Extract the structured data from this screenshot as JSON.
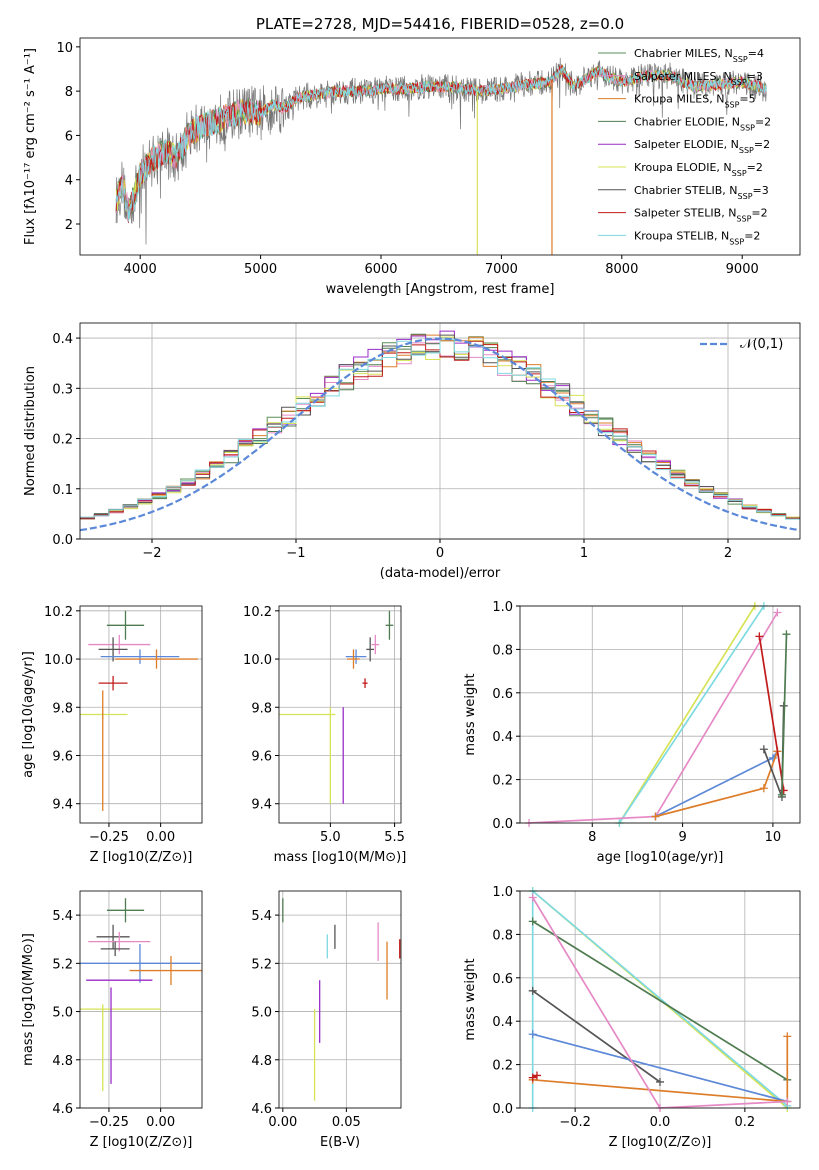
{
  "colors": {
    "Chabrier MILES": "#5b8f56",
    "Salpeter MILES": "#e68ac6",
    "Kroupa MILES": "#dd7d2a",
    "Chabrier ELODIE": "#4f7b50",
    "Salpeter ELODIE": "#9a2cc9",
    "Kroupa ELODIE": "#d7e356",
    "Chabrier STELIB": "#555555",
    "Salpeter STELIB": "#c11b1b",
    "Kroupa STELIB": "#7fd9e1",
    "blue": "#5b88d8"
  },
  "chart_data": [
    {
      "panel": "spectrum",
      "type": "line",
      "title": "PLATE=2728, MJD=54416, FIBERID=0528, z=0.0",
      "xlabel": "wavelength [Angstrom, rest frame]",
      "ylabel": "Flux [fλ10⁻¹⁷ erg cm⁻² s⁻¹ A⁻¹]",
      "xlim": [
        3500,
        9480
      ],
      "ylim": [
        0.6,
        10.4
      ],
      "xticks": [
        "4000",
        "5000",
        "6000",
        "7000",
        "8000",
        "9000"
      ],
      "yticks": [
        "2",
        "4",
        "6",
        "8",
        "10"
      ],
      "legend": [
        "Chabrier MILES, NSSP=4",
        "Salpeter MILES, NSSP=3",
        "Kroupa MILES, NSSP=5",
        "Chabrier ELODIE, NSSP=2",
        "Salpeter ELODIE, NSSP=2",
        "Kroupa ELODIE, NSSP=2",
        "Chabrier STELIB, NSSP=3",
        "Salpeter STELIB, NSSP=2",
        "Kroupa STELIB, NSSP=2"
      ],
      "legend_placement": "right",
      "continuum": [
        [
          3800,
          3.0
        ],
        [
          3850,
          3.8
        ],
        [
          3900,
          2.6
        ],
        [
          3950,
          3.2
        ],
        [
          4000,
          4.3
        ],
        [
          4100,
          4.9
        ],
        [
          4200,
          5.3
        ],
        [
          4300,
          5.0
        ],
        [
          4400,
          6.0
        ],
        [
          4500,
          6.4
        ],
        [
          4600,
          6.6
        ],
        [
          4700,
          6.8
        ],
        [
          4800,
          7.0
        ],
        [
          4900,
          7.1
        ],
        [
          5000,
          7.0
        ],
        [
          5100,
          7.4
        ],
        [
          5200,
          7.2
        ],
        [
          5300,
          7.7
        ],
        [
          5400,
          7.8
        ],
        [
          5500,
          7.9
        ],
        [
          5700,
          8.0
        ],
        [
          5900,
          8.0
        ],
        [
          6000,
          8.1
        ],
        [
          6200,
          8.1
        ],
        [
          6400,
          8.2
        ],
        [
          6600,
          8.2
        ],
        [
          6800,
          8.0
        ],
        [
          7000,
          8.1
        ],
        [
          7200,
          8.3
        ],
        [
          7400,
          8.4
        ],
        [
          7500,
          9.0
        ],
        [
          7600,
          8.2
        ],
        [
          7800,
          8.9
        ],
        [
          8000,
          8.4
        ],
        [
          8200,
          8.7
        ],
        [
          8400,
          8.7
        ],
        [
          8600,
          8.2
        ],
        [
          8800,
          8.3
        ],
        [
          9000,
          8.4
        ],
        [
          9200,
          8.1
        ]
      ],
      "spikes": [
        [
          6800,
          0.6
        ],
        [
          7420,
          0.6
        ]
      ]
    },
    {
      "panel": "residuals",
      "type": "line",
      "xlabel": "(data-model)/error",
      "ylabel": "Normed distribution",
      "xlim": [
        -2.5,
        2.5
      ],
      "ylim": [
        0.0,
        0.43
      ],
      "xticks": [
        -2,
        -1,
        0,
        1,
        2
      ],
      "xticklabels": [
        "−2",
        "−1",
        "0",
        "1",
        "2"
      ],
      "yticks": [
        0.0,
        0.1,
        0.2,
        0.3,
        0.4
      ],
      "yticklabels": [
        "0.0",
        "0.1",
        "0.2",
        "0.3",
        "0.4"
      ],
      "legend": "𝒩(0,1)",
      "legend_placement": "top-right",
      "normal": {
        "mean": 0,
        "sigma": 1
      },
      "bin_width": 0.1
    },
    {
      "panel": "age-vs-Z",
      "type": "scatter",
      "xlabel": "Z [log10(Z/Z⊙)]",
      "ylabel": "age  [log10(age/yr)]",
      "xlim": [
        -0.39,
        0.2
      ],
      "ylim": [
        9.32,
        10.22
      ],
      "xticks": [
        "−0.25",
        "0.00"
      ],
      "yticks": [
        "9.4",
        "9.6",
        "9.8",
        "10.0",
        "10.2"
      ],
      "errorbars": [
        {
          "c": "Chabrier ELODIE",
          "x": -0.17,
          "y": 10.14,
          "xe": 0.09,
          "ye": 0.06
        },
        {
          "c": "Salpeter MILES",
          "x": -0.2,
          "y": 10.06,
          "xe": 0.15,
          "ye": 0.04
        },
        {
          "c": "Chabrier STELIB",
          "x": -0.23,
          "y": 10.04,
          "xe": 0.07,
          "ye": 0.05
        },
        {
          "c": "blue",
          "x": -0.1,
          "y": 10.01,
          "xe": 0.19,
          "ye": 0.03
        },
        {
          "c": "Kroupa MILES",
          "x": -0.02,
          "y": 10.0,
          "xe": 0.2,
          "ye": 0.04
        },
        {
          "c": "Salpeter STELIB",
          "x": -0.23,
          "y": 9.9,
          "xe": 0.07,
          "ye": 0.03
        },
        {
          "c": "Kroupa ELODIE",
          "x": -0.28,
          "y": 9.77,
          "xe": 0.12,
          "ye": 0.02
        },
        {
          "c": "Kroupa MILES",
          "x": -0.28,
          "y": 9.62,
          "xe": 0.0,
          "ye": 0.25
        }
      ]
    },
    {
      "panel": "age-vs-mass",
      "type": "scatter",
      "xlabel": "mass [log10(M/M⊙)]",
      "xlim": [
        4.6,
        5.55
      ],
      "ylim": [
        9.32,
        10.22
      ],
      "xticks": [
        "5.0",
        "5.5"
      ],
      "yticks": [
        "9.4",
        "9.6",
        "9.8",
        "10.0",
        "10.2"
      ],
      "errorbars": [
        {
          "c": "Chabrier ELODIE",
          "x": 5.46,
          "y": 10.14,
          "xe": 0.03,
          "ye": 0.06
        },
        {
          "c": "Salpeter MILES",
          "x": 5.35,
          "y": 10.06,
          "xe": 0.03,
          "ye": 0.04
        },
        {
          "c": "Chabrier STELIB",
          "x": 5.31,
          "y": 10.04,
          "xe": 0.03,
          "ye": 0.05
        },
        {
          "c": "blue",
          "x": 5.2,
          "y": 10.01,
          "xe": 0.08,
          "ye": 0.03
        },
        {
          "c": "Kroupa MILES",
          "x": 5.18,
          "y": 10.0,
          "xe": 0.05,
          "ye": 0.04
        },
        {
          "c": "Salpeter STELIB",
          "x": 5.27,
          "y": 9.9,
          "xe": 0.02,
          "ye": 0.02
        },
        {
          "c": "Salpeter ELODIE",
          "x": 5.1,
          "y": 9.6,
          "xe": 0.0,
          "ye": 0.2
        },
        {
          "c": "Kroupa ELODIE",
          "x": 5.0,
          "y": 9.6,
          "xe": 0.0,
          "ye": 0.2
        },
        {
          "c": "Kroupa ELODIE",
          "x": 4.82,
          "y": 9.77,
          "xe": 0.22,
          "ye": 0.0
        }
      ]
    },
    {
      "panel": "weight-vs-age",
      "type": "line",
      "xlabel": "age  [log10(age/yr)]",
      "ylabel": "mass weight",
      "xlim": [
        7.2,
        10.3
      ],
      "ylim": [
        0.0,
        1.0
      ],
      "xticks": [
        "8",
        "9",
        "10"
      ],
      "yticks": [
        "0.0",
        "0.2",
        "0.4",
        "0.6",
        "0.8",
        "1.0"
      ],
      "lines": [
        {
          "c": "Kroupa ELODIE",
          "pts": [
            [
              8.3,
              0.0
            ],
            [
              9.8,
              1.0
            ]
          ]
        },
        {
          "c": "Kroupa STELIB",
          "pts": [
            [
              8.3,
              0.0
            ],
            [
              9.9,
              1.0
            ]
          ]
        },
        {
          "c": "Salpeter MILES",
          "pts": [
            [
              7.3,
              0.0
            ],
            [
              8.7,
              0.03
            ],
            [
              10.05,
              0.97
            ]
          ]
        },
        {
          "c": "blue",
          "pts": [
            [
              8.7,
              0.03
            ],
            [
              10.0,
              0.3
            ],
            [
              10.05,
              0.33
            ]
          ]
        },
        {
          "c": "Kroupa MILES",
          "pts": [
            [
              8.7,
              0.03
            ],
            [
              9.9,
              0.16
            ],
            [
              10.05,
              0.33
            ]
          ]
        },
        {
          "c": "Salpeter STELIB",
          "pts": [
            [
              9.85,
              0.86
            ],
            [
              10.12,
              0.15
            ]
          ]
        },
        {
          "c": "Chabrier STELIB",
          "pts": [
            [
              9.9,
              0.34
            ],
            [
              10.1,
              0.12
            ],
            [
              10.12,
              0.54
            ]
          ]
        },
        {
          "c": "Chabrier ELODIE",
          "pts": [
            [
              10.1,
              0.13
            ],
            [
              10.15,
              0.87
            ]
          ]
        }
      ]
    },
    {
      "panel": "mass-vs-Z",
      "type": "scatter",
      "xlabel": "Z [log10(Z/Z⊙)]",
      "ylabel": "mass [log10(M/M⊙)]",
      "xlim": [
        -0.39,
        0.2
      ],
      "ylim": [
        4.6,
        5.5
      ],
      "xticks": [
        "−0.25",
        "0.00"
      ],
      "yticks": [
        "4.6",
        "4.8",
        "5.0",
        "5.2",
        "5.4"
      ],
      "errorbars": [
        {
          "c": "Chabrier ELODIE",
          "x": -0.17,
          "y": 5.42,
          "xe": 0.09,
          "ye": 0.05
        },
        {
          "c": "Chabrier STELIB",
          "x": -0.23,
          "y": 5.31,
          "xe": 0.08,
          "ye": 0.05
        },
        {
          "c": "Salpeter MILES",
          "x": -0.2,
          "y": 5.29,
          "xe": 0.15,
          "ye": 0.04
        },
        {
          "c": "Chabrier STELIB",
          "x": -0.22,
          "y": 5.26,
          "xe": 0.07,
          "ye": 0.03
        },
        {
          "c": "blue",
          "x": -0.1,
          "y": 5.2,
          "xe": 0.29,
          "ye": 0.08
        },
        {
          "c": "Kroupa MILES",
          "x": 0.05,
          "y": 5.17,
          "xe": 0.2,
          "ye": 0.06
        },
        {
          "c": "Salpeter ELODIE",
          "x": -0.2,
          "y": 5.13,
          "xe": 0.16,
          "ye": 0.0
        },
        {
          "c": "Kroupa ELODIE",
          "x": -0.2,
          "y": 5.01,
          "xe": 0.2,
          "ye": 0.0
        },
        {
          "c": "Kroupa ELODIE",
          "x": -0.28,
          "y": 4.85,
          "xe": 0.0,
          "ye": 0.18
        },
        {
          "c": "Salpeter ELODIE",
          "x": -0.24,
          "y": 4.9,
          "xe": 0.0,
          "ye": 0.2
        }
      ]
    },
    {
      "panel": "mass-vs-EBV",
      "type": "scatter",
      "xlabel": "E(B-V)",
      "xlim": [
        -0.003,
        0.093
      ],
      "ylim": [
        4.6,
        5.5
      ],
      "xticks": [
        "0.00",
        "0.05"
      ],
      "yticks": [
        "4.6",
        "4.8",
        "5.0",
        "5.2",
        "5.4"
      ],
      "errorbars": [
        {
          "c": "Chabrier ELODIE",
          "x": 0.0,
          "y": 5.42,
          "xe": 0.0,
          "ye": 0.05
        },
        {
          "c": "Kroupa STELIB",
          "x": 0.035,
          "y": 5.27,
          "xe": 0.0,
          "ye": 0.05
        },
        {
          "c": "Chabrier STELIB",
          "x": 0.041,
          "y": 5.31,
          "xe": 0.0,
          "ye": 0.05
        },
        {
          "c": "Salpeter MILES",
          "x": 0.075,
          "y": 5.29,
          "xe": 0.0,
          "ye": 0.08
        },
        {
          "c": "Salpeter STELIB",
          "x": 0.092,
          "y": 5.26,
          "xe": 0.0,
          "ye": 0.04
        },
        {
          "c": "Kroupa MILES",
          "x": 0.082,
          "y": 5.17,
          "xe": 0.0,
          "ye": 0.12
        },
        {
          "c": "Salpeter ELODIE",
          "x": 0.029,
          "y": 5.0,
          "xe": 0.0,
          "ye": 0.13
        },
        {
          "c": "Kroupa ELODIE",
          "x": 0.025,
          "y": 4.82,
          "xe": 0.0,
          "ye": 0.19
        }
      ]
    },
    {
      "panel": "weight-vs-Z",
      "type": "line",
      "xlabel": "Z [log10(Z/Z⊙)]",
      "ylabel": "mass weight",
      "xlim": [
        -0.33,
        0.33
      ],
      "ylim": [
        0.0,
        1.0
      ],
      "xticks": [
        "−0.2",
        "0.0",
        "0.2"
      ],
      "yticks": [
        "0.0",
        "0.2",
        "0.4",
        "0.6",
        "0.8",
        "1.0"
      ],
      "lines": [
        {
          "c": "Kroupa ELODIE",
          "pts": [
            [
              -0.3,
              1.0
            ],
            [
              0.3,
              0.0
            ]
          ]
        },
        {
          "c": "Kroupa STELIB",
          "pts": [
            [
              -0.3,
              0.0
            ],
            [
              -0.3,
              1.0
            ],
            [
              0.3,
              0.01
            ]
          ]
        },
        {
          "c": "Chabrier ELODIE",
          "pts": [
            [
              -0.3,
              0.86
            ],
            [
              0.3,
              0.13
            ]
          ]
        },
        {
          "c": "Chabrier STELIB",
          "pts": [
            [
              -0.3,
              0.54
            ],
            [
              0.0,
              0.12
            ]
          ]
        },
        {
          "c": "blue",
          "pts": [
            [
              -0.3,
              0.34
            ],
            [
              0.3,
              0.03
            ]
          ]
        },
        {
          "c": "Kroupa MILES",
          "pts": [
            [
              -0.3,
              0.13
            ],
            [
              0.3,
              0.03
            ],
            [
              0.3,
              0.33
            ]
          ]
        },
        {
          "c": "Salpeter MILES",
          "pts": [
            [
              -0.3,
              0.97
            ],
            [
              0.0,
              0.0
            ],
            [
              0.3,
              0.03
            ]
          ]
        },
        {
          "c": "Salpeter STELIB",
          "pts": [
            [
              -0.3,
              0.14
            ],
            [
              -0.29,
              0.15
            ]
          ]
        }
      ]
    }
  ]
}
